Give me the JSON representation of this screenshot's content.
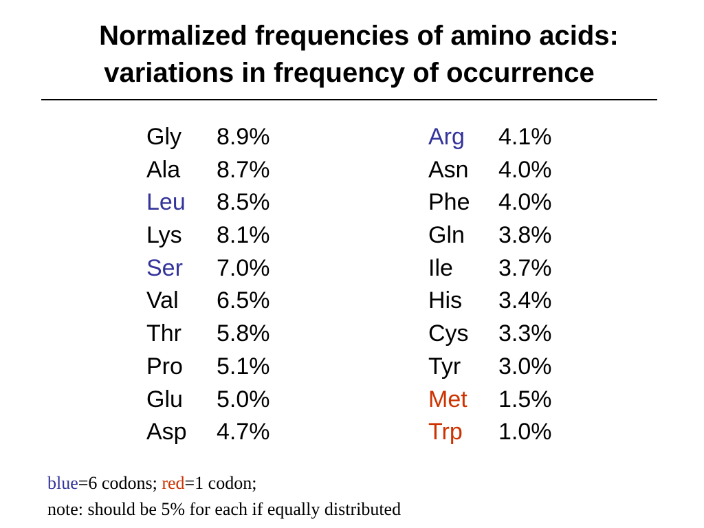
{
  "title": {
    "line1": "Normalized frequencies of amino acids:",
    "line2": "variations in frequency of occurrence"
  },
  "colors": {
    "blue": "#33339a",
    "red": "#cc3300",
    "black": "#000000"
  },
  "columns": [
    {
      "rows": [
        {
          "name": "Gly",
          "value": "8.9%",
          "codon_class": "normal"
        },
        {
          "name": "Ala",
          "value": "8.7%",
          "codon_class": "normal"
        },
        {
          "name": "Leu",
          "value": "8.5%",
          "codon_class": "six"
        },
        {
          "name": "Lys",
          "value": "8.1%",
          "codon_class": "normal"
        },
        {
          "name": "Ser",
          "value": "7.0%",
          "codon_class": "six"
        },
        {
          "name": "Val",
          "value": "6.5%",
          "codon_class": "normal"
        },
        {
          "name": "Thr",
          "value": "5.8%",
          "codon_class": "normal"
        },
        {
          "name": "Pro",
          "value": "5.1%",
          "codon_class": "normal"
        },
        {
          "name": "Glu",
          "value": "5.0%",
          "codon_class": "normal"
        },
        {
          "name": "Asp",
          "value": "4.7%",
          "codon_class": "normal"
        }
      ]
    },
    {
      "rows": [
        {
          "name": "Arg",
          "value": "4.1%",
          "codon_class": "six"
        },
        {
          "name": "Asn",
          "value": "4.0%",
          "codon_class": "normal"
        },
        {
          "name": "Phe",
          "value": "4.0%",
          "codon_class": "normal"
        },
        {
          "name": "Gln",
          "value": "3.8%",
          "codon_class": "normal"
        },
        {
          "name": "Ile",
          "value": "3.7%",
          "codon_class": "normal"
        },
        {
          "name": "His",
          "value": "3.4%",
          "codon_class": "normal"
        },
        {
          "name": "Cys",
          "value": "3.3%",
          "codon_class": "normal"
        },
        {
          "name": "Tyr",
          "value": "3.0%",
          "codon_class": "normal"
        },
        {
          "name": "Met",
          "value": "1.5%",
          "codon_class": "one"
        },
        {
          "name": "Trp",
          "value": "1.0%",
          "codon_class": "one"
        }
      ]
    }
  ],
  "legend": {
    "blue_word": "blue",
    "blue_text": "=6 codons; ",
    "red_word": "red",
    "red_text": "=1 codon;",
    "note": "note:  should be 5% for each if equally distributed"
  }
}
